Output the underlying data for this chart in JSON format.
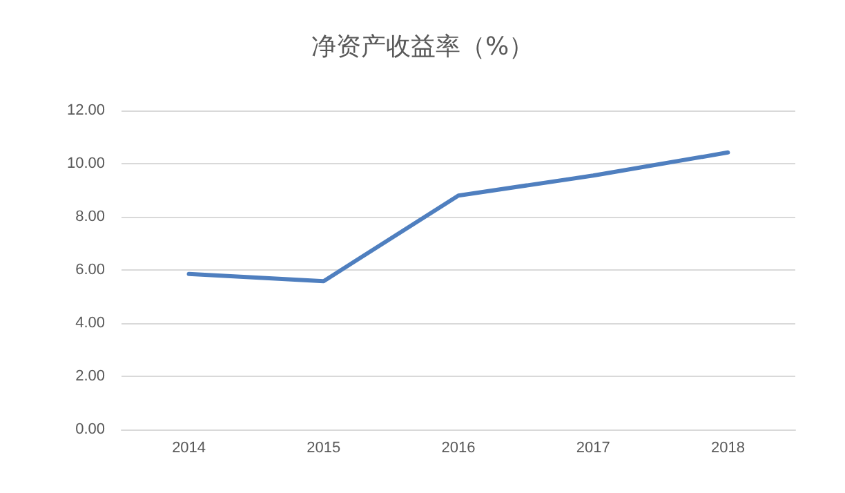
{
  "chart_data": {
    "type": "line",
    "title": "净资产收益率（%）",
    "categories": [
      "2014",
      "2015",
      "2016",
      "2017",
      "2018"
    ],
    "series": [
      {
        "color": "#4f7fbf",
        "values": [
          5.85,
          5.58,
          8.8,
          9.55,
          10.42
        ]
      }
    ],
    "ylim": [
      0,
      12
    ],
    "yticks": [
      {
        "value": 0,
        "label": "0.00"
      },
      {
        "value": 2,
        "label": "2.00"
      },
      {
        "value": 4,
        "label": "4.00"
      },
      {
        "value": 6,
        "label": "6.00"
      },
      {
        "value": 8,
        "label": "8.00"
      },
      {
        "value": 10,
        "label": "10.00"
      },
      {
        "value": 12,
        "label": "12.00"
      }
    ],
    "grid": "y",
    "marker": "none",
    "line_style": "solid"
  }
}
